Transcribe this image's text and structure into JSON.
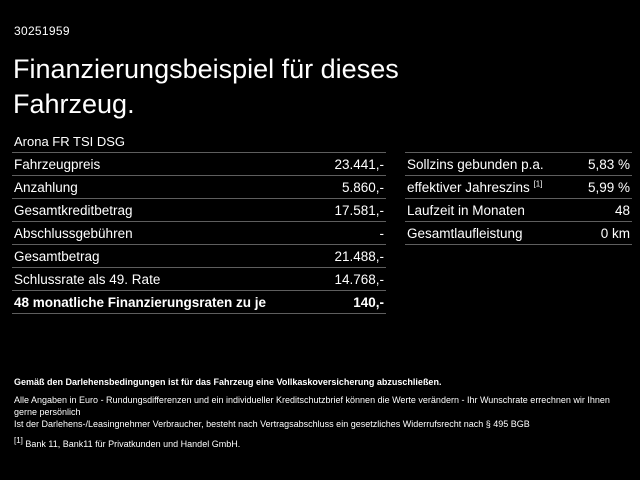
{
  "header": {
    "id": "30251959",
    "title": "Finanzierungsbeispiel für dieses Fahrzeug.",
    "subtitle": "Arona FR TSI DSG"
  },
  "tables": {
    "left": {
      "rows": [
        {
          "label": "Fahrzeugpreis",
          "value": "23.441,-"
        },
        {
          "label": "Anzahlung",
          "value": "5.860,-"
        },
        {
          "label": "Gesamtkreditbetrag",
          "value": "17.581,-"
        },
        {
          "label": "Abschlussgebühren",
          "value": "-"
        },
        {
          "label": "Gesamtbetrag",
          "value": "21.488,-"
        },
        {
          "label": "Schlussrate als 49. Rate",
          "value": "14.768,-"
        },
        {
          "label": "48 monatliche Finanzierungsraten zu je",
          "value": "140,-"
        }
      ]
    },
    "right": {
      "rows": [
        {
          "label": "Sollzins gebunden p.a.",
          "sup": "",
          "value": "5,83 %"
        },
        {
          "label": "effektiver Jahreszins ",
          "sup": "[1]",
          "value": "5,99 %"
        },
        {
          "label": "Laufzeit in Monaten",
          "sup": "",
          "value": "48"
        },
        {
          "label": "Gesamtlaufleistung",
          "sup": "",
          "value": "0 km"
        }
      ]
    }
  },
  "footer": {
    "line_bold": "Gemäß den Darlehensbedingungen ist für das Fahrzeug eine Vollkaskoversicherung abzuschließen.",
    "line2": "Alle Angaben in Euro - Rundungsdifferenzen und ein individueller Kreditschutzbrief können die Werte verändern - Ihr Wunschrate errechnen wir Ihnen gerne persönlich",
    "line3": "Ist der Darlehens-/Leasingnehmer Verbraucher, besteht nach Vertragsabschluss ein gesetzliches Widerrufsrecht nach § 495 BGB",
    "note_sup": "[1]",
    "note_text": " Bank 11, Bank11 für Privatkunden und Handel GmbH."
  }
}
